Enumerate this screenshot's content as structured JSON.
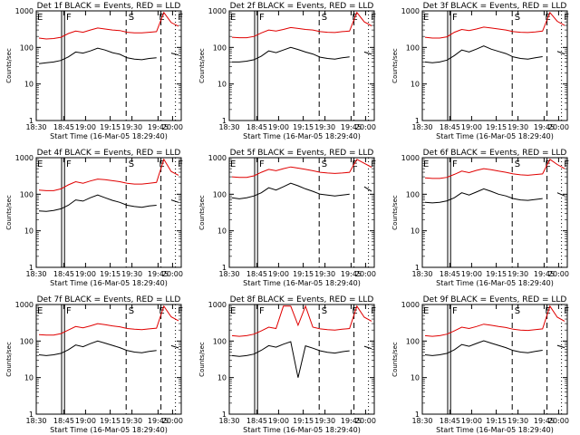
{
  "chart_data": [
    {
      "type": "line",
      "title": "Det 1f BLACK = Events, RED = LLD",
      "xlabel": "Start Time (16-Mar-05 18:29:40)",
      "ylabel": "Counts/sec",
      "y_scale": "log",
      "ylim": [
        1,
        1000
      ],
      "x_ticks": [
        "18:30",
        "18:45",
        "19:00",
        "19:15",
        "19:30",
        "19:45",
        "20:00"
      ],
      "y_ticks": [
        "1",
        "10",
        "100",
        "1000"
      ],
      "markers": [
        "E",
        "F",
        "S",
        "E",
        "F"
      ],
      "series": [
        {
          "name": "BLACK = Events",
          "color": "#000000",
          "values": [
            36,
            38,
            40,
            44,
            55,
            75,
            70,
            80,
            95,
            85,
            72,
            65,
            52,
            48,
            46,
            50,
            52,
            null,
            70,
            62
          ]
        },
        {
          "name": "RED = LLD",
          "color": "#e00000",
          "values": [
            180,
            170,
            175,
            190,
            240,
            280,
            260,
            300,
            340,
            320,
            300,
            290,
            260,
            250,
            250,
            260,
            270,
            900,
            480,
            380
          ]
        }
      ]
    },
    {
      "type": "line",
      "title": "Det 2f BLACK = Events, RED = LLD",
      "xlabel": "Start Time (16-Mar-05 18:29:40)",
      "ylabel": "Counts/sec",
      "y_scale": "log",
      "ylim": [
        1,
        1000
      ],
      "x_ticks": [
        "18:30",
        "18:45",
        "19:00",
        "19:15",
        "19:30",
        "19:45",
        "20:00"
      ],
      "y_ticks": [
        "1",
        "10",
        "100",
        "1000"
      ],
      "markers": [
        "E",
        "F",
        "S",
        "E",
        "F"
      ],
      "series": [
        {
          "name": "BLACK = Events",
          "color": "#000000",
          "values": [
            40,
            40,
            42,
            46,
            58,
            80,
            72,
            85,
            100,
            88,
            75,
            66,
            54,
            50,
            48,
            52,
            55,
            null,
            75,
            65
          ]
        },
        {
          "name": "RED = LLD",
          "color": "#e00000",
          "values": [
            190,
            185,
            185,
            200,
            250,
            300,
            280,
            310,
            350,
            330,
            310,
            300,
            270,
            260,
            255,
            270,
            280,
            900,
            500,
            390
          ]
        }
      ]
    },
    {
      "type": "line",
      "title": "Det 3f BLACK = Events, RED = LLD",
      "xlabel": "Start Time (16-Mar-05 18:29:40)",
      "ylabel": "Counts/sec",
      "y_scale": "log",
      "ylim": [
        1,
        1000
      ],
      "x_ticks": [
        "18:30",
        "18:45",
        "19:00",
        "19:15",
        "19:30",
        "19:45",
        "20:00"
      ],
      "y_ticks": [
        "1",
        "10",
        "100",
        "1000"
      ],
      "markers": [
        "E",
        "F",
        "S",
        "E",
        "F"
      ],
      "series": [
        {
          "name": "BLACK = Events",
          "color": "#000000",
          "values": [
            40,
            38,
            40,
            45,
            60,
            85,
            75,
            90,
            110,
            90,
            78,
            68,
            55,
            50,
            48,
            52,
            56,
            null,
            78,
            66
          ]
        },
        {
          "name": "RED = LLD",
          "color": "#e00000",
          "values": [
            190,
            180,
            180,
            195,
            260,
            310,
            290,
            320,
            360,
            340,
            320,
            300,
            270,
            260,
            255,
            265,
            280,
            900,
            520,
            400
          ]
        }
      ]
    },
    {
      "type": "line",
      "title": "Det 4f BLACK = Events, RED = LLD",
      "xlabel": "Start Time (16-Mar-05 18:29:40)",
      "ylabel": "Counts/sec",
      "y_scale": "log",
      "ylim": [
        1,
        1000
      ],
      "x_ticks": [
        "18:30",
        "18:45",
        "19:00",
        "19:15",
        "19:30",
        "19:45",
        "20:00"
      ],
      "y_ticks": [
        "1",
        "10",
        "100",
        "1000"
      ],
      "markers": [
        "E",
        "F",
        "S",
        "E",
        "F"
      ],
      "series": [
        {
          "name": "BLACK = Events",
          "color": "#000000",
          "values": [
            35,
            34,
            36,
            40,
            50,
            70,
            65,
            80,
            95,
            80,
            68,
            60,
            50,
            46,
            44,
            48,
            50,
            null,
            70,
            60
          ]
        },
        {
          "name": "RED = LLD",
          "color": "#e00000",
          "values": [
            130,
            125,
            125,
            140,
            180,
            220,
            200,
            230,
            260,
            250,
            235,
            220,
            200,
            190,
            190,
            200,
            210,
            900,
            420,
            330
          ]
        }
      ]
    },
    {
      "type": "line",
      "title": "Det 5f BLACK = Events, RED = LLD",
      "xlabel": "Start Time (16-Mar-05 18:29:40)",
      "ylabel": "Counts/sec",
      "y_scale": "log",
      "ylim": [
        1,
        1000
      ],
      "x_ticks": [
        "18:30",
        "18:45",
        "19:00",
        "19:15",
        "19:30",
        "19:45",
        "20:00"
      ],
      "y_ticks": [
        "1",
        "10",
        "100",
        "1000"
      ],
      "markers": [
        "E",
        "F",
        "S",
        "E",
        "F"
      ],
      "series": [
        {
          "name": "BLACK = Events",
          "color": "#000000",
          "values": [
            80,
            75,
            80,
            90,
            110,
            150,
            130,
            160,
            200,
            170,
            140,
            120,
            100,
            95,
            90,
            95,
            100,
            null,
            160,
            120
          ]
        },
        {
          "name": "RED = LLD",
          "color": "#e00000",
          "values": [
            300,
            290,
            290,
            320,
            400,
            480,
            440,
            500,
            560,
            520,
            480,
            440,
            400,
            380,
            370,
            380,
            400,
            900,
            700,
            550
          ]
        }
      ]
    },
    {
      "type": "line",
      "title": "Det 6f BLACK = Events, RED = LLD",
      "xlabel": "Start Time (16-Mar-05 18:29:40)",
      "ylabel": "Counts/sec",
      "y_scale": "log",
      "ylim": [
        1,
        1000
      ],
      "x_ticks": [
        "18:30",
        "18:45",
        "19:00",
        "19:15",
        "19:30",
        "19:45",
        "20:00"
      ],
      "y_ticks": [
        "1",
        "10",
        "100",
        "1000"
      ],
      "markers": [
        "E",
        "F",
        "S",
        "E",
        "F"
      ],
      "series": [
        {
          "name": "BLACK = Events",
          "color": "#000000",
          "values": [
            60,
            58,
            60,
            66,
            80,
            110,
            95,
            115,
            140,
            120,
            100,
            90,
            76,
            70,
            68,
            72,
            76,
            null,
            110,
            90
          ]
        },
        {
          "name": "RED = LLD",
          "color": "#e00000",
          "values": [
            280,
            270,
            270,
            290,
            350,
            430,
            390,
            450,
            500,
            470,
            430,
            400,
            360,
            340,
            330,
            345,
            360,
            900,
            650,
            500
          ]
        }
      ]
    },
    {
      "type": "line",
      "title": "Det 7f BLACK = Events, RED = LLD",
      "xlabel": "Start Time (16-Mar-05 18:29:40)",
      "ylabel": "Counts/sec",
      "y_scale": "log",
      "ylim": [
        1,
        1000
      ],
      "x_ticks": [
        "18:30",
        "18:45",
        "19:00",
        "19:15",
        "19:30",
        "19:45",
        "20:00"
      ],
      "y_ticks": [
        "1",
        "10",
        "100",
        "1000"
      ],
      "markers": [
        "E",
        "F",
        "S",
        "E",
        "F"
      ],
      "series": [
        {
          "name": "BLACK = Events",
          "color": "#000000",
          "values": [
            42,
            40,
            42,
            46,
            58,
            78,
            70,
            85,
            100,
            88,
            76,
            66,
            55,
            50,
            48,
            52,
            55,
            null,
            75,
            65
          ]
        },
        {
          "name": "RED = LLD",
          "color": "#e00000",
          "values": [
            150,
            145,
            145,
            160,
            200,
            250,
            230,
            260,
            300,
            280,
            260,
            245,
            220,
            210,
            205,
            215,
            225,
            900,
            460,
            360
          ]
        }
      ]
    },
    {
      "type": "line",
      "title": "Det 8f BLACK = Events, RED = LLD",
      "xlabel": "Start Time (16-Mar-05 18:29:40)",
      "ylabel": "Counts/sec",
      "y_scale": "log",
      "ylim": [
        1,
        1000
      ],
      "x_ticks": [
        "18:30",
        "18:45",
        "19:00",
        "19:15",
        "19:30",
        "19:45",
        "20:00"
      ],
      "y_ticks": [
        "1",
        "10",
        "100",
        "1000"
      ],
      "markers": [
        "E",
        "F",
        "S",
        "E",
        "F"
      ],
      "series": [
        {
          "name": "BLACK = Events",
          "color": "#000000",
          "values": [
            40,
            38,
            40,
            44,
            56,
            75,
            68,
            82,
            96,
            10,
            74,
            64,
            54,
            49,
            47,
            51,
            54,
            null,
            72,
            62
          ]
        },
        {
          "name": "RED = LLD",
          "color": "#e00000",
          "values": [
            140,
            135,
            140,
            155,
            190,
            240,
            220,
            900,
            900,
            270,
            900,
            240,
            215,
            205,
            200,
            210,
            220,
            900,
            450,
            350
          ]
        }
      ]
    },
    {
      "type": "line",
      "title": "Det 9f BLACK = Events, RED = LLD",
      "xlabel": "Start Time (16-Mar-05 18:29:40)",
      "ylabel": "Counts/sec",
      "y_scale": "log",
      "ylim": [
        1,
        1000
      ],
      "x_ticks": [
        "18:30",
        "18:45",
        "19:00",
        "19:15",
        "19:30",
        "19:45",
        "20:00"
      ],
      "y_ticks": [
        "1",
        "10",
        "100",
        "1000"
      ],
      "markers": [
        "E",
        "F",
        "S",
        "E",
        "F"
      ],
      "series": [
        {
          "name": "BLACK = Events",
          "color": "#000000",
          "values": [
            42,
            40,
            42,
            46,
            58,
            80,
            72,
            86,
            102,
            88,
            76,
            66,
            55,
            50,
            48,
            52,
            56,
            null,
            76,
            66
          ]
        },
        {
          "name": "RED = LLD",
          "color": "#e00000",
          "values": [
            140,
            135,
            140,
            155,
            190,
            240,
            220,
            250,
            290,
            270,
            250,
            235,
            210,
            200,
            195,
            205,
            215,
            900,
            450,
            350
          ]
        }
      ]
    }
  ]
}
